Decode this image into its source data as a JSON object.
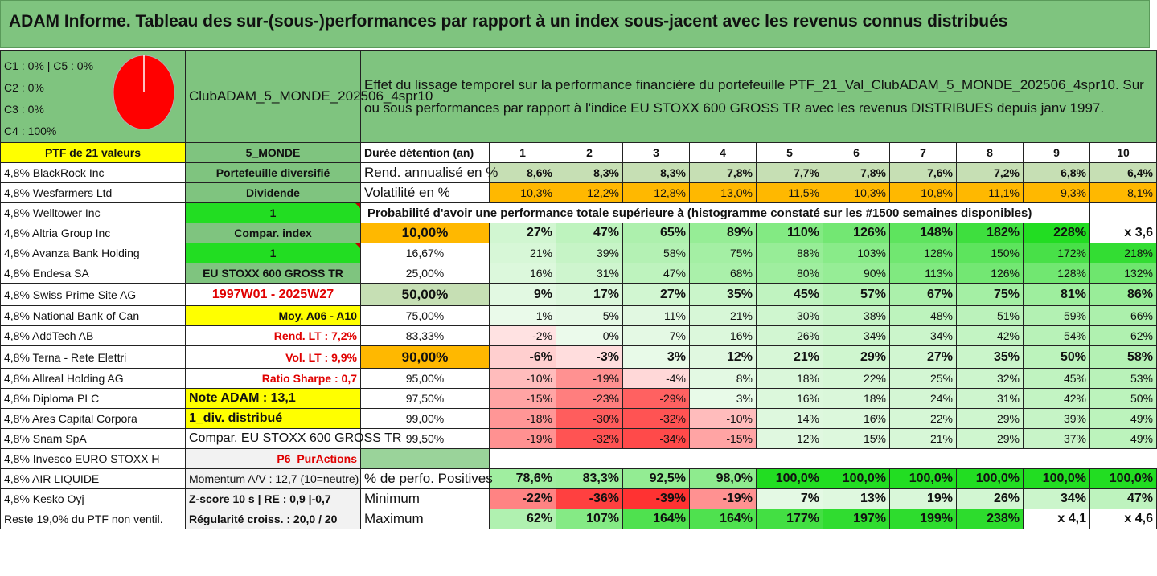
{
  "title": "ADAM Informe. Tableau des sur-(sous-)performances par rapport à un index sous-jacent avec les revenus connus distribués",
  "classes": [
    "C1 : 0% | C5 : 0%",
    "C2 : 0%",
    "C3 : 0%",
    "C4 : 100%"
  ],
  "pie": {
    "fill": "#ff0000",
    "slices": [
      {
        "name": "C4",
        "value": 100
      }
    ]
  },
  "portfolio_name": "ClubADAM_5_MONDE_202506_4spr10",
  "description": "Effet du lissage temporel sur la performance financière du portefeuille PTF_21_Val_ClubADAM_5_MONDE_202506_4spr10. Sur ou sous performances par rapport à l'indice EU STOXX 600 GROSS TR avec les revenus DISTRIBUES depuis janv 1997.",
  "ptf_label": "PTF de 21 valeurs",
  "fund_label": "5_MONDE",
  "duration_label": "Durée détention (an)",
  "years": [
    "1",
    "2",
    "3",
    "4",
    "5",
    "6",
    "7",
    "8",
    "9",
    "10"
  ],
  "holdings": [
    "4,8% BlackRock Inc",
    "4,8% Wesfarmers Ltd",
    "4,8% Welltower Inc",
    "4,8% Altria Group Inc",
    "4,8% Avanza Bank Holding",
    "4,8% Endesa SA",
    "4,8% Swiss Prime Site AG",
    "4,8% National Bank of Can",
    "4,8% AddTech AB",
    "4,8% Terna - Rete Elettri",
    "4,8% Allreal Holding AG",
    "4,8% Diploma PLC",
    "4,8% Ares Capital Corpora",
    "4,8% Snam SpA",
    "4,8% Invesco EURO STOXX H",
    "4,8% AIR LIQUIDE",
    "4,8% Kesko Oyj",
    "Reste 19,0% du PTF non ventil."
  ],
  "side": [
    "Portefeuille diversifié",
    "Dividende",
    "1",
    "Compar. index",
    "1",
    "EU STOXX 600 GROSS TR",
    "1997W01 - 2025W27",
    "Moy. A06 - A10",
    "Rend. LT : 7,2%",
    "Vol. LT : 9,9%",
    "Ratio Sharpe : 0,7",
    "Note ADAM : 13,1",
    "1_div. distribué",
    "Compar. EU STOXX 600 GROSS TR",
    "P6_PurActions",
    "Momentum A/V : 12,7 (10=neutre)",
    "Z-score 10 s | RE : 0,9 |-0,7",
    "Régularité croiss. : 20,0 / 20"
  ],
  "rend_label": "Rend. annualisé en %",
  "rend": [
    "8,6%",
    "8,3%",
    "8,3%",
    "7,8%",
    "7,7%",
    "7,8%",
    "7,6%",
    "7,2%",
    "6,8%",
    "6,4%"
  ],
  "vol_label": "Volatilité en %",
  "vol": [
    "10,3%",
    "12,2%",
    "12,8%",
    "13,0%",
    "11,5%",
    "10,3%",
    "10,8%",
    "11,1%",
    "9,3%",
    "8,1%"
  ],
  "prob_label": "Probabilité d'avoir une performance totale supérieure à (histogramme constaté sur les #1500 semaines disponibles)",
  "prob_rows": [
    {
      "pct": "10,00%",
      "vals": [
        "27%",
        "47%",
        "65%",
        "89%",
        "110%",
        "126%",
        "148%",
        "182%",
        "228%",
        "x 3,6"
      ]
    },
    {
      "pct": "16,67%",
      "vals": [
        "21%",
        "39%",
        "58%",
        "75%",
        "88%",
        "103%",
        "128%",
        "150%",
        "172%",
        "218%"
      ]
    },
    {
      "pct": "25,00%",
      "vals": [
        "16%",
        "31%",
        "47%",
        "68%",
        "80%",
        "90%",
        "113%",
        "126%",
        "128%",
        "132%"
      ]
    },
    {
      "pct": "50,00%",
      "vals": [
        "9%",
        "17%",
        "27%",
        "35%",
        "45%",
        "57%",
        "67%",
        "75%",
        "81%",
        "86%"
      ]
    },
    {
      "pct": "75,00%",
      "vals": [
        "1%",
        "5%",
        "11%",
        "21%",
        "30%",
        "38%",
        "48%",
        "51%",
        "59%",
        "66%"
      ]
    },
    {
      "pct": "83,33%",
      "vals": [
        "-2%",
        "0%",
        "7%",
        "16%",
        "26%",
        "34%",
        "34%",
        "42%",
        "54%",
        "62%"
      ]
    },
    {
      "pct": "90,00%",
      "vals": [
        "-6%",
        "-3%",
        "3%",
        "12%",
        "21%",
        "29%",
        "27%",
        "35%",
        "50%",
        "58%"
      ]
    },
    {
      "pct": "95,00%",
      "vals": [
        "-10%",
        "-19%",
        "-4%",
        "8%",
        "18%",
        "22%",
        "25%",
        "32%",
        "45%",
        "53%"
      ]
    },
    {
      "pct": "97,50%",
      "vals": [
        "-15%",
        "-23%",
        "-29%",
        "3%",
        "16%",
        "18%",
        "24%",
        "31%",
        "42%",
        "50%"
      ]
    },
    {
      "pct": "99,00%",
      "vals": [
        "-18%",
        "-30%",
        "-32%",
        "-10%",
        "14%",
        "16%",
        "22%",
        "29%",
        "39%",
        "49%"
      ]
    },
    {
      "pct": "99,50%",
      "vals": [
        "-19%",
        "-32%",
        "-34%",
        "-15%",
        "12%",
        "15%",
        "21%",
        "29%",
        "37%",
        "49%"
      ]
    }
  ],
  "pos_label": "% de perfo. Positives",
  "pos": [
    "78,6%",
    "83,3%",
    "92,5%",
    "98,0%",
    "100,0%",
    "100,0%",
    "100,0%",
    "100,0%",
    "100,0%",
    "100,0%"
  ],
  "min_label": "Minimum",
  "min": [
    "-22%",
    "-36%",
    "-39%",
    "-19%",
    "7%",
    "13%",
    "19%",
    "26%",
    "34%",
    "47%"
  ],
  "max_label": "Maximum",
  "max": [
    "62%",
    "107%",
    "164%",
    "164%",
    "177%",
    "197%",
    "199%",
    "238%",
    "x 4,1",
    "x 4,6"
  ],
  "colors": {
    "header_green": "#7fc47f",
    "yellow": "#ffff00",
    "orange": "#ffb800",
    "bright_green": "#22dd22",
    "pale_green": "#c6dfb4",
    "strong_red": "#ff3030"
  }
}
